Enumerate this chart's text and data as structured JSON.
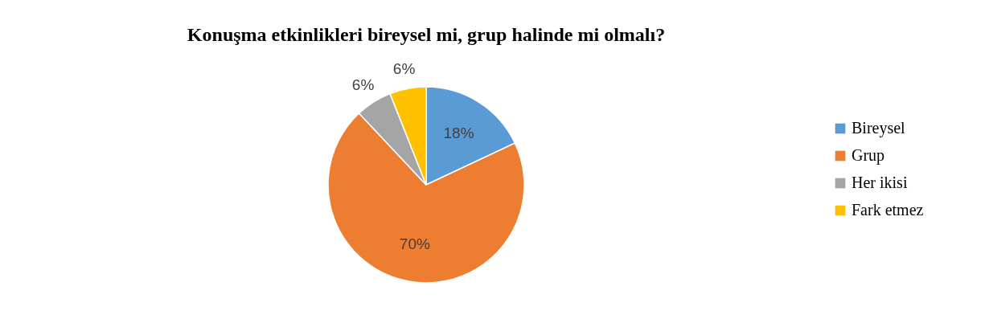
{
  "chart_data": {
    "type": "pie",
    "title": "Konuşma etkinlikleri bireysel mi, grup halinde mi olmalı?",
    "categories": [
      "Bireysel",
      "Grup",
      "Her ikisi",
      "Fark etmez"
    ],
    "values": [
      18,
      70,
      6,
      6
    ],
    "colors": [
      "#5b9bd5",
      "#ed7d31",
      "#a5a5a5",
      "#ffc000"
    ],
    "value_labels": [
      "18%",
      "70%",
      "6%",
      "6%"
    ],
    "legend": "right"
  }
}
